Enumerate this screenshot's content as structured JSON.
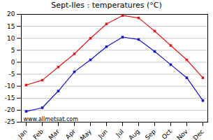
{
  "chart_data": {
    "type": "line",
    "title": "Sept-Iles : temperatures (°C)",
    "categories": [
      "Jan",
      "Feb",
      "Mar",
      "Apr",
      "May",
      "Jun",
      "Jul",
      "Aug",
      "Sep",
      "Oct",
      "Nov",
      "Dec"
    ],
    "series": [
      {
        "color": "#e01818",
        "values": [
          -9.5,
          -7.5,
          -2,
          3.5,
          10,
          16,
          19.5,
          18.5,
          13,
          7,
          1,
          -6.5
        ]
      },
      {
        "color": "#1414c8",
        "values": [
          -20.5,
          -19,
          -12,
          -4,
          1,
          6.5,
          10.5,
          9.5,
          4.5,
          -1,
          -6.5,
          -16
        ]
      }
    ],
    "ylim": [
      -25,
      20
    ],
    "yticks": [
      -25,
      -20,
      -15,
      -10,
      -5,
      0,
      5,
      10,
      15,
      20
    ],
    "grid": true,
    "marker": "square",
    "annotation": "www.allmetsat.com"
  }
}
